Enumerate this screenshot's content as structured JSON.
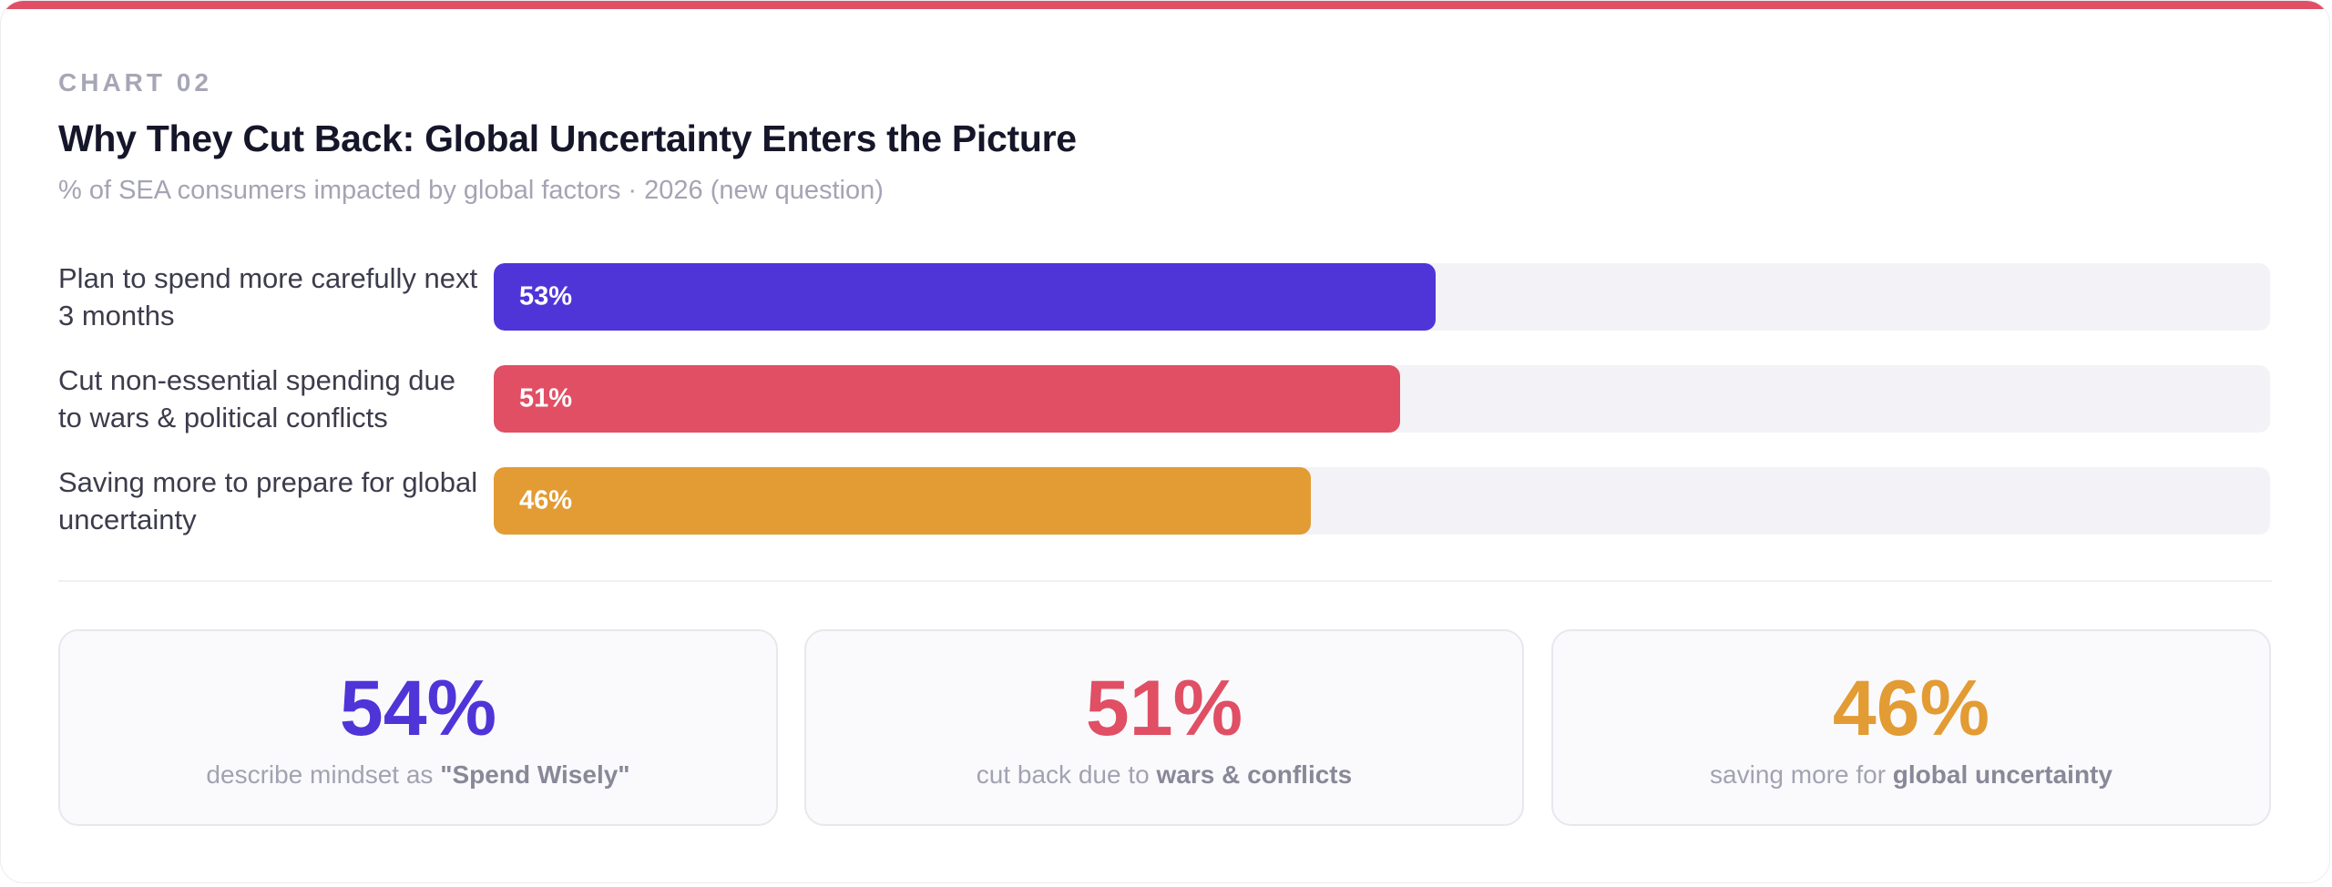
{
  "header": {
    "eyebrow": "CHART 02",
    "title": "Why They Cut Back: Global Uncertainty Enters the Picture",
    "subtitle": "% of SEA consumers impacted by global factors · 2026 (new question)"
  },
  "colors": {
    "accent_top": "#e04f64",
    "series": [
      "#4f35d8",
      "#e04f64",
      "#e39b33"
    ],
    "track": "#f3f3f7"
  },
  "chart_data": {
    "type": "bar",
    "orientation": "horizontal",
    "title": "Why They Cut Back: Global Uncertainty Enters the Picture",
    "subtitle": "% of SEA consumers impacted by global factors · 2026 (new question)",
    "categories": [
      "Plan to spend more carefully next 3 months",
      "Cut non-essential spending due to wars & political conflicts",
      "Saving more to prepare for global uncertainty"
    ],
    "values": [
      53,
      51,
      46
    ],
    "value_labels": [
      "53%",
      "51%",
      "46%"
    ],
    "xlim": [
      0,
      100
    ],
    "grid": false
  },
  "stats": [
    {
      "value": "54%",
      "caption_pre": "describe mindset as ",
      "caption_bold": "\"Spend Wisely\""
    },
    {
      "value": "51%",
      "caption_pre": "cut back due to ",
      "caption_bold": "wars & conflicts"
    },
    {
      "value": "46%",
      "caption_pre": "saving more for ",
      "caption_bold": "global uncertainty"
    }
  ]
}
